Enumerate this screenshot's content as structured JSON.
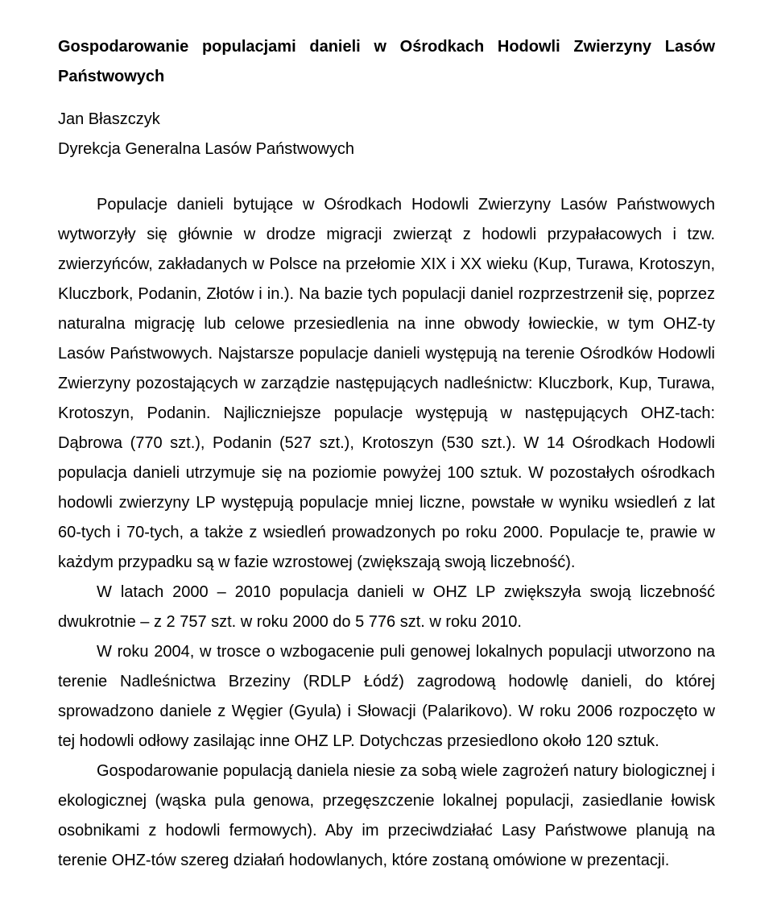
{
  "document": {
    "title": "Gospodarowanie populacjami danieli w Ośrodkach Hodowli Zwierzyny Lasów Państwowych",
    "author": "Jan Błaszczyk",
    "affiliation": "Dyrekcja Generalna Lasów Państwowych",
    "paragraphs": [
      "Populacje danieli bytujące w Ośrodkach Hodowli Zwierzyny Lasów Państwowych wytworzyły się głównie w drodze migracji zwierząt z hodowli przypałacowych i tzw. zwierzyńców, zakładanych w Polsce na przełomie XIX i XX wieku (Kup, Turawa, Krotoszyn, Kluczbork, Podanin, Złotów i in.). Na bazie tych populacji daniel rozprzestrzenił się, poprzez naturalna migrację lub celowe przesiedlenia na inne obwody łowieckie, w tym OHZ-ty Lasów Państwowych. Najstarsze populacje danieli występują na terenie Ośrodków Hodowli Zwierzyny pozostających w zarządzie następujących nadleśnictw: Kluczbork, Kup, Turawa, Krotoszyn, Podanin. Najliczniejsze populacje występują w następujących OHZ-tach: Dąbrowa (770 szt.), Podanin (527 szt.), Krotoszyn (530 szt.). W 14 Ośrodkach Hodowli populacja danieli utrzymuje się na poziomie powyżej 100 sztuk. W pozostałych ośrodkach hodowli zwierzyny LP występują populacje mniej liczne, powstałe w wyniku wsiedleń z lat 60-tych i 70-tych, a także z wsiedleń prowadzonych po roku 2000. Populacje te, prawie w każdym przypadku są w fazie wzrostowej (zwiększają swoją liczebność).",
      "W latach 2000 – 2010 populacja danieli w OHZ LP zwiększyła swoją liczebność dwukrotnie – z 2 757 szt. w roku 2000 do 5 776 szt. w roku 2010.",
      "W roku 2004, w trosce o wzbogacenie puli genowej lokalnych populacji utworzono na terenie Nadleśnictwa Brzeziny (RDLP Łódź) zagrodową hodowlę danieli, do której sprowadzono daniele z Węgier (Gyula) i Słowacji (Palarikovo). W roku 2006 rozpoczęto w tej hodowli odłowy zasilając inne OHZ LP. Dotychczas przesiedlono około 120 sztuk.",
      "Gospodarowanie populacją daniela niesie za sobą wiele zagrożeń natury biologicznej i ekologicznej (wąska pula genowa, przegęszczenie lokalnej populacji, zasiedlanie łowisk osobnikami z hodowli fermowych). Aby im przeciwdziałać Lasy Państwowe planują na terenie OHZ-tów szereg działań hodowlanych, które zostaną omówione w prezentacji."
    ],
    "text_color": "#000000",
    "background_color": "#ffffff",
    "font_family": "Arial",
    "title_font_weight": 700,
    "body_font_size_pt": 15,
    "line_height": 1.85
  }
}
